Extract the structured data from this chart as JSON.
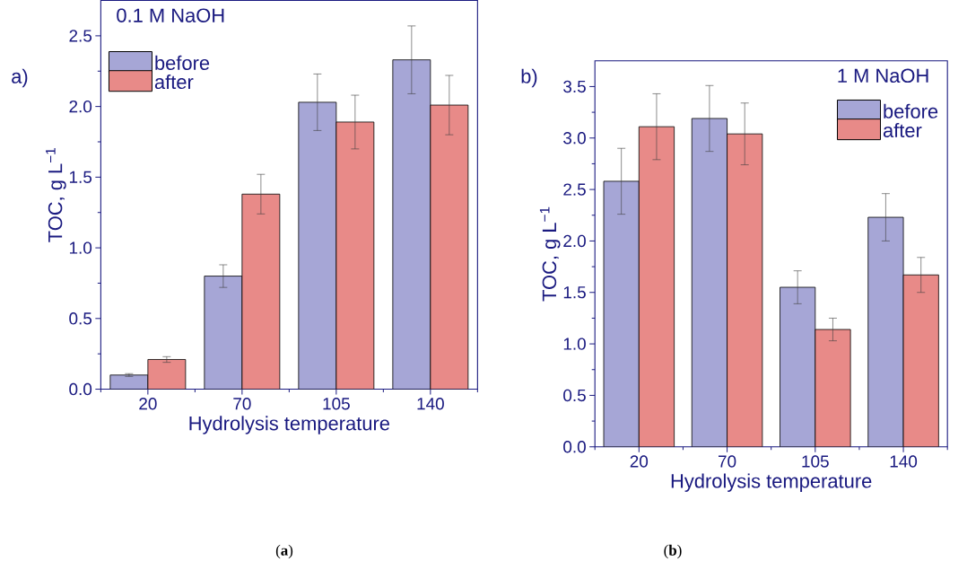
{
  "chart_data": [
    {
      "type": "bar",
      "categories": [
        "20",
        "70",
        "105",
        "140"
      ],
      "xlabel": "Hydrolysis temperature",
      "ylabel": "TOC, g L$^{−1}$",
      "ylim": [
        0,
        2.75
      ],
      "yticks": [
        {
          "value": 0,
          "label": "0.0"
        },
        0.5,
        {
          "value": 1,
          "label": "1.0"
        },
        1.5,
        {
          "value": 2,
          "label": "2.0"
        },
        2.5
      ],
      "legend": "top left",
      "annotations": [
        "a)",
        "0.1 M NaOH",
        "(**a**)"
      ],
      "series": [
        {
          "name": "before",
          "color": "#a6a6d6",
          "values": [
            0.1,
            0.8,
            2.03,
            2.33
          ],
          "errors": [
            0.01,
            0.08,
            0.2,
            0.24
          ]
        },
        {
          "name": "after",
          "color": "#e88a88",
          "values": [
            0.21,
            1.38,
            1.89,
            2.01
          ],
          "errors": [
            0.02,
            0.14,
            0.19,
            0.21
          ]
        }
      ]
    },
    {
      "type": "bar",
      "categories": [
        "20",
        "70",
        "105",
        "140"
      ],
      "xlabel": "Hydrolysis temperature",
      "ylabel": "TOC, g L$^{−1}$",
      "ylim": [
        0,
        3.75
      ],
      "yticks": [
        {
          "value": 0,
          "label": "0.0"
        },
        0.5,
        {
          "value": 1,
          "label": "1.0"
        },
        1.5,
        {
          "value": 2,
          "label": "2.0"
        },
        2.5,
        {
          "value": 3,
          "label": "3.0"
        },
        3.5
      ],
      "legend": "top right",
      "annotations": [
        "b)",
        "1 M NaOH",
        "(**b**)"
      ],
      "series": [
        {
          "name": "before",
          "color": "#a6a6d6",
          "values": [
            2.58,
            3.19,
            1.55,
            2.23
          ],
          "errors": [
            0.32,
            0.32,
            0.16,
            0.23
          ]
        },
        {
          "name": "after",
          "color": "#e88a88",
          "values": [
            3.11,
            3.04,
            1.14,
            1.67
          ],
          "errors": [
            0.32,
            0.3,
            0.11,
            0.17
          ]
        }
      ]
    }
  ]
}
